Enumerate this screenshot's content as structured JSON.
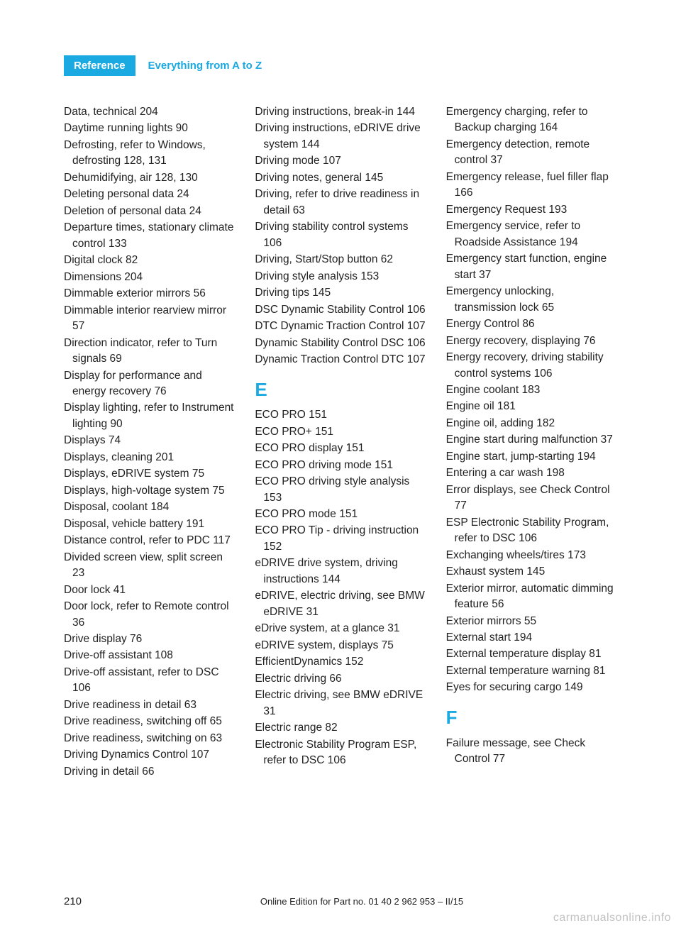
{
  "header": {
    "chapter": "Reference",
    "section": "Everything from A to Z"
  },
  "columns": [
    {
      "items": [
        {
          "t": "entry",
          "text": "Data, technical 204"
        },
        {
          "t": "entry",
          "text": "Daytime running lights 90"
        },
        {
          "t": "entry",
          "text": "Defrosting, refer to Windows, defrosting 128, 131"
        },
        {
          "t": "entry",
          "text": "Dehumidifying, air 128, 130"
        },
        {
          "t": "entry",
          "text": "Deleting personal data 24"
        },
        {
          "t": "entry",
          "text": "Deletion of personal data 24"
        },
        {
          "t": "entry",
          "text": "Departure times, stationary climate control 133"
        },
        {
          "t": "entry",
          "text": "Digital clock 82"
        },
        {
          "t": "entry",
          "text": "Dimensions 204"
        },
        {
          "t": "entry",
          "text": "Dimmable exterior mirrors 56"
        },
        {
          "t": "entry",
          "text": "Dimmable interior rearview mirror 57"
        },
        {
          "t": "entry",
          "text": "Direction indicator, refer to Turn signals 69"
        },
        {
          "t": "entry",
          "text": "Display for performance and energy recovery 76"
        },
        {
          "t": "entry",
          "text": "Display lighting, refer to Instrument lighting 90"
        },
        {
          "t": "entry",
          "text": "Displays 74"
        },
        {
          "t": "entry",
          "text": "Displays, cleaning 201"
        },
        {
          "t": "entry",
          "text": "Displays, eDRIVE system 75"
        },
        {
          "t": "entry",
          "text": "Displays, high-voltage system 75"
        },
        {
          "t": "entry",
          "text": "Disposal, coolant 184"
        },
        {
          "t": "entry",
          "text": "Disposal, vehicle battery 191"
        },
        {
          "t": "entry",
          "text": "Distance control, refer to PDC 117"
        },
        {
          "t": "entry",
          "text": "Divided screen view, split screen 23"
        },
        {
          "t": "entry",
          "text": "Door lock 41"
        },
        {
          "t": "entry",
          "text": "Door lock, refer to Remote control 36"
        },
        {
          "t": "entry",
          "text": "Drive display 76"
        },
        {
          "t": "entry",
          "text": "Drive-off assistant 108"
        },
        {
          "t": "entry",
          "text": "Drive-off assistant, refer to DSC 106"
        },
        {
          "t": "entry",
          "text": "Drive readiness in detail 63"
        },
        {
          "t": "entry",
          "text": "Drive readiness, switching off 65"
        },
        {
          "t": "entry",
          "text": "Drive readiness, switching on 63"
        },
        {
          "t": "entry",
          "text": "Driving Dynamics Control 107"
        },
        {
          "t": "entry",
          "text": "Driving in detail 66"
        }
      ]
    },
    {
      "items": [
        {
          "t": "entry",
          "text": "Driving instructions, break-in 144"
        },
        {
          "t": "entry",
          "text": "Driving instructions, eDRIVE drive system 144"
        },
        {
          "t": "entry",
          "text": "Driving mode 107"
        },
        {
          "t": "entry",
          "text": "Driving notes, general 145"
        },
        {
          "t": "entry",
          "text": "Driving, refer to drive readiness in detail 63"
        },
        {
          "t": "entry",
          "text": "Driving stability control systems 106"
        },
        {
          "t": "entry",
          "text": "Driving, Start/Stop button 62"
        },
        {
          "t": "entry",
          "text": "Driving style analysis 153"
        },
        {
          "t": "entry",
          "text": "Driving tips 145"
        },
        {
          "t": "entry",
          "text": "DSC Dynamic Stability Control 106"
        },
        {
          "t": "entry",
          "text": "DTC Dynamic Traction Control 107"
        },
        {
          "t": "entry",
          "text": "Dynamic Stability Control DSC 106"
        },
        {
          "t": "entry",
          "text": "Dynamic Traction Control DTC 107"
        },
        {
          "t": "letter",
          "text": "E"
        },
        {
          "t": "entry",
          "text": "ECO PRO 151"
        },
        {
          "t": "entry",
          "text": "ECO PRO+ 151"
        },
        {
          "t": "entry",
          "text": "ECO PRO display 151"
        },
        {
          "t": "entry",
          "text": "ECO PRO driving mode 151"
        },
        {
          "t": "entry",
          "text": "ECO PRO driving style analysis 153"
        },
        {
          "t": "entry",
          "text": "ECO PRO mode 151"
        },
        {
          "t": "entry",
          "text": "ECO PRO Tip - driving instruction 152"
        },
        {
          "t": "entry",
          "text": "eDRIVE drive system, driving instructions 144"
        },
        {
          "t": "entry",
          "text": "eDRIVE, electric driving, see BMW eDRIVE 31"
        },
        {
          "t": "entry",
          "text": "eDrive system, at a glance 31"
        },
        {
          "t": "entry",
          "text": "eDRIVE system, displays 75"
        },
        {
          "t": "entry",
          "text": "EfficientDynamics 152"
        },
        {
          "t": "entry",
          "text": "Electric driving 66"
        },
        {
          "t": "entry",
          "text": "Electric driving, see BMW eDRIVE 31"
        },
        {
          "t": "entry",
          "text": "Electric range 82"
        },
        {
          "t": "entry",
          "text": "Electronic Stability Program ESP, refer to DSC 106"
        }
      ]
    },
    {
      "items": [
        {
          "t": "entry",
          "text": "Emergency charging, refer to Backup charging 164"
        },
        {
          "t": "entry",
          "text": "Emergency detection, remote control 37"
        },
        {
          "t": "entry",
          "text": "Emergency release, fuel filler flap 166"
        },
        {
          "t": "entry",
          "text": "Emergency Request 193"
        },
        {
          "t": "entry",
          "text": "Emergency service, refer to Roadside Assistance 194"
        },
        {
          "t": "entry",
          "text": "Emergency start function, engine start 37"
        },
        {
          "t": "entry",
          "text": "Emergency unlocking, transmission lock 65"
        },
        {
          "t": "entry",
          "text": "Energy Control 86"
        },
        {
          "t": "entry",
          "text": "Energy recovery, displaying 76"
        },
        {
          "t": "entry",
          "text": "Energy recovery, driving stability control systems 106"
        },
        {
          "t": "entry",
          "text": "Engine coolant 183"
        },
        {
          "t": "entry",
          "text": "Engine oil 181"
        },
        {
          "t": "entry",
          "text": "Engine oil, adding 182"
        },
        {
          "t": "entry",
          "text": "Engine start during malfunction 37"
        },
        {
          "t": "entry",
          "text": "Engine start, jump-starting 194"
        },
        {
          "t": "entry",
          "text": "Entering a car wash 198"
        },
        {
          "t": "entry",
          "text": "Error displays, see Check Control 77"
        },
        {
          "t": "entry",
          "text": "ESP Electronic Stability Program, refer to DSC 106"
        },
        {
          "t": "entry",
          "text": "Exchanging wheels/tires 173"
        },
        {
          "t": "entry",
          "text": "Exhaust system 145"
        },
        {
          "t": "entry",
          "text": "Exterior mirror, automatic dimming feature 56"
        },
        {
          "t": "entry",
          "text": "Exterior mirrors 55"
        },
        {
          "t": "entry",
          "text": "External start 194"
        },
        {
          "t": "entry",
          "text": "External temperature display 81"
        },
        {
          "t": "entry",
          "text": "External temperature warning 81"
        },
        {
          "t": "entry",
          "text": "Eyes for securing cargo 149"
        },
        {
          "t": "letter",
          "text": "F"
        },
        {
          "t": "entry",
          "text": "Failure message, see Check Control 77"
        }
      ]
    }
  ],
  "footer": {
    "page_number": "210",
    "edition": "Online Edition for Part no. 01 40 2 962 953 – II/15"
  },
  "watermark": "carmanualsonline.info"
}
